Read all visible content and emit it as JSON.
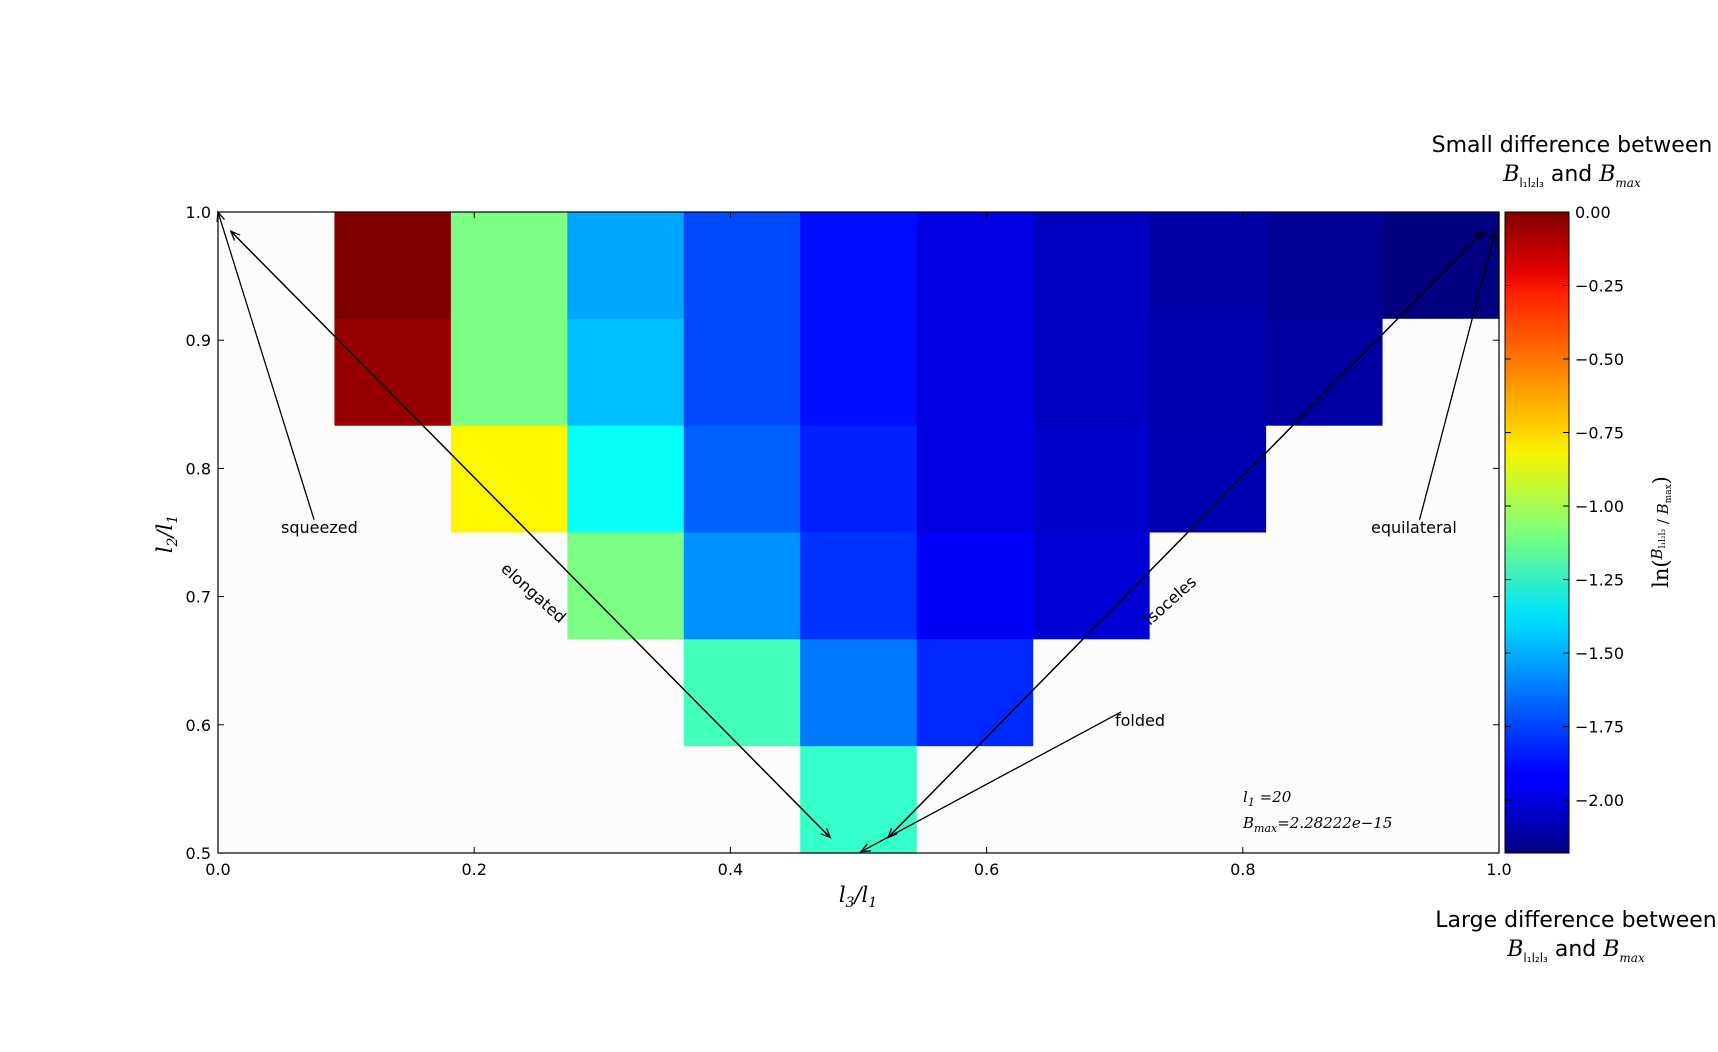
{
  "chart_data": {
    "type": "heatmap",
    "xlabel": "l3/l1",
    "ylabel": "l2/l1",
    "xlim": [
      0.0,
      1.0
    ],
    "ylim": [
      0.5,
      1.0
    ],
    "xticks": [
      "0.0",
      "0.2",
      "0.4",
      "0.6",
      "0.8",
      "1.0"
    ],
    "yticks": [
      "0.5",
      "0.6",
      "0.7",
      "0.8",
      "0.9",
      "1.0"
    ],
    "x_bins": [
      0.0,
      0.0909,
      0.1818,
      0.2727,
      0.3636,
      0.4545,
      0.5455,
      0.6364,
      0.7273,
      0.8182,
      0.9091,
      1.0
    ],
    "y_bins": [
      0.5,
      0.5833,
      0.6667,
      0.75,
      0.8333,
      0.9167,
      1.0
    ],
    "colormap": "jet",
    "clim": [
      -2.18,
      0.0
    ],
    "values_by_row_top_to_bottom": [
      [
        null,
        0.0,
        -1.1,
        -1.55,
        -1.75,
        -1.88,
        -1.97,
        -2.04,
        -2.09,
        -2.13,
        -2.18
      ],
      [
        null,
        -0.05,
        -1.1,
        -1.5,
        -1.75,
        -1.88,
        -1.97,
        -2.04,
        -2.08,
        -2.11,
        null
      ],
      [
        null,
        null,
        -0.8,
        -1.35,
        -1.7,
        -1.84,
        -1.97,
        -2.02,
        -2.07,
        null,
        null
      ],
      [
        null,
        null,
        null,
        -1.1,
        -1.6,
        -1.8,
        -1.92,
        -2.0,
        null,
        null,
        null
      ],
      [
        null,
        null,
        null,
        null,
        -1.22,
        -1.65,
        -1.82,
        null,
        null,
        null,
        null
      ],
      [
        null,
        null,
        null,
        null,
        null,
        -1.25,
        null,
        null,
        null,
        null,
        null
      ]
    ],
    "annotations": [
      "squeezed",
      "elongated",
      "folded",
      "isoceles",
      "equilateral"
    ],
    "info_lines": [
      "l1 =20",
      "Bmax=2.28222e−15"
    ],
    "colorbar": {
      "label": "ln(Bl1l2l3/Bmax)",
      "ticks": [
        "0.00",
        "−0.25",
        "−0.50",
        "−0.75",
        "−1.00",
        "−1.25",
        "−1.50",
        "−1.75",
        "−2.00"
      ],
      "top_title": [
        "Small difference between",
        "and"
      ],
      "bottom_title": [
        "Large difference between",
        "and"
      ]
    }
  }
}
